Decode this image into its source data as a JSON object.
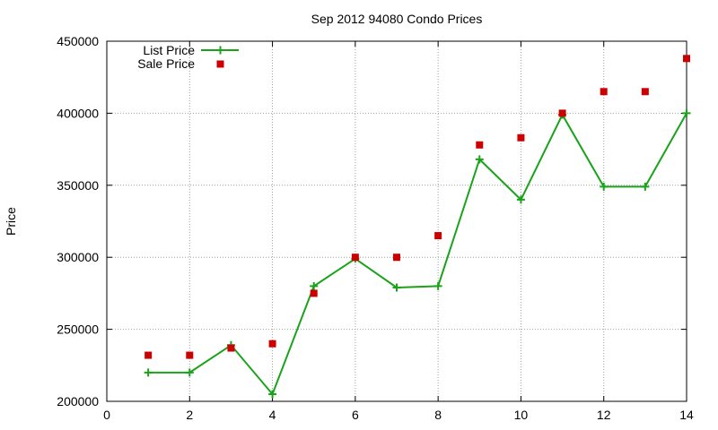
{
  "chart_data": {
    "type": "line",
    "title": "Sep 2012 94080 Condo Prices",
    "xlabel": "",
    "ylabel": "Price",
    "xlim": [
      0,
      14
    ],
    "ylim": [
      200000,
      450000
    ],
    "x_ticks": [
      "0",
      "2",
      "4",
      "6",
      "8",
      "10",
      "12",
      "14"
    ],
    "y_ticks": [
      "200000",
      "250000",
      "300000",
      "350000",
      "400000",
      "450000"
    ],
    "grid": true,
    "legend_position": "top-left",
    "series": [
      {
        "name": "List Price",
        "style": "line-with-plus-markers",
        "color": "#1aa31a",
        "x": [
          1,
          2,
          3,
          4,
          5,
          6,
          7,
          8,
          9,
          10,
          11,
          12,
          13,
          14
        ],
        "y": [
          220000,
          220000,
          239000,
          205000,
          280000,
          299000,
          279000,
          280000,
          368000,
          340000,
          399000,
          349000,
          349000,
          400000
        ]
      },
      {
        "name": "Sale Price",
        "style": "square-markers",
        "color": "#cc0000",
        "x": [
          1,
          2,
          3,
          4,
          5,
          6,
          7,
          8,
          9,
          10,
          11,
          12,
          13,
          14
        ],
        "y": [
          232000,
          232000,
          237000,
          240000,
          275000,
          300000,
          300000,
          315000,
          378000,
          383000,
          400000,
          415000,
          415000,
          438000
        ]
      }
    ]
  }
}
